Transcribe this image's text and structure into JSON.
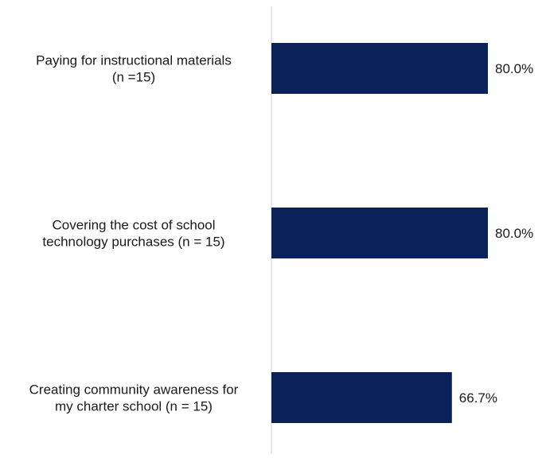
{
  "chart_data": {
    "type": "bar",
    "orientation": "horizontal",
    "categories": [
      [
        "Paying for instructional materials",
        "(n =15)"
      ],
      [
        "Covering the cost of school",
        "technology purchases (n = 15)"
      ],
      [
        "Creating community awareness for",
        "my charter school (n = 15)"
      ]
    ],
    "values": [
      80.0,
      80.0,
      66.7
    ],
    "data_labels": [
      "80.0%",
      "80.0%",
      "66.7%"
    ],
    "xlim": [
      0,
      100
    ],
    "grid": false,
    "legend": "none",
    "bar_color": "#0b2259",
    "axis_color": "#d0d0d0"
  }
}
